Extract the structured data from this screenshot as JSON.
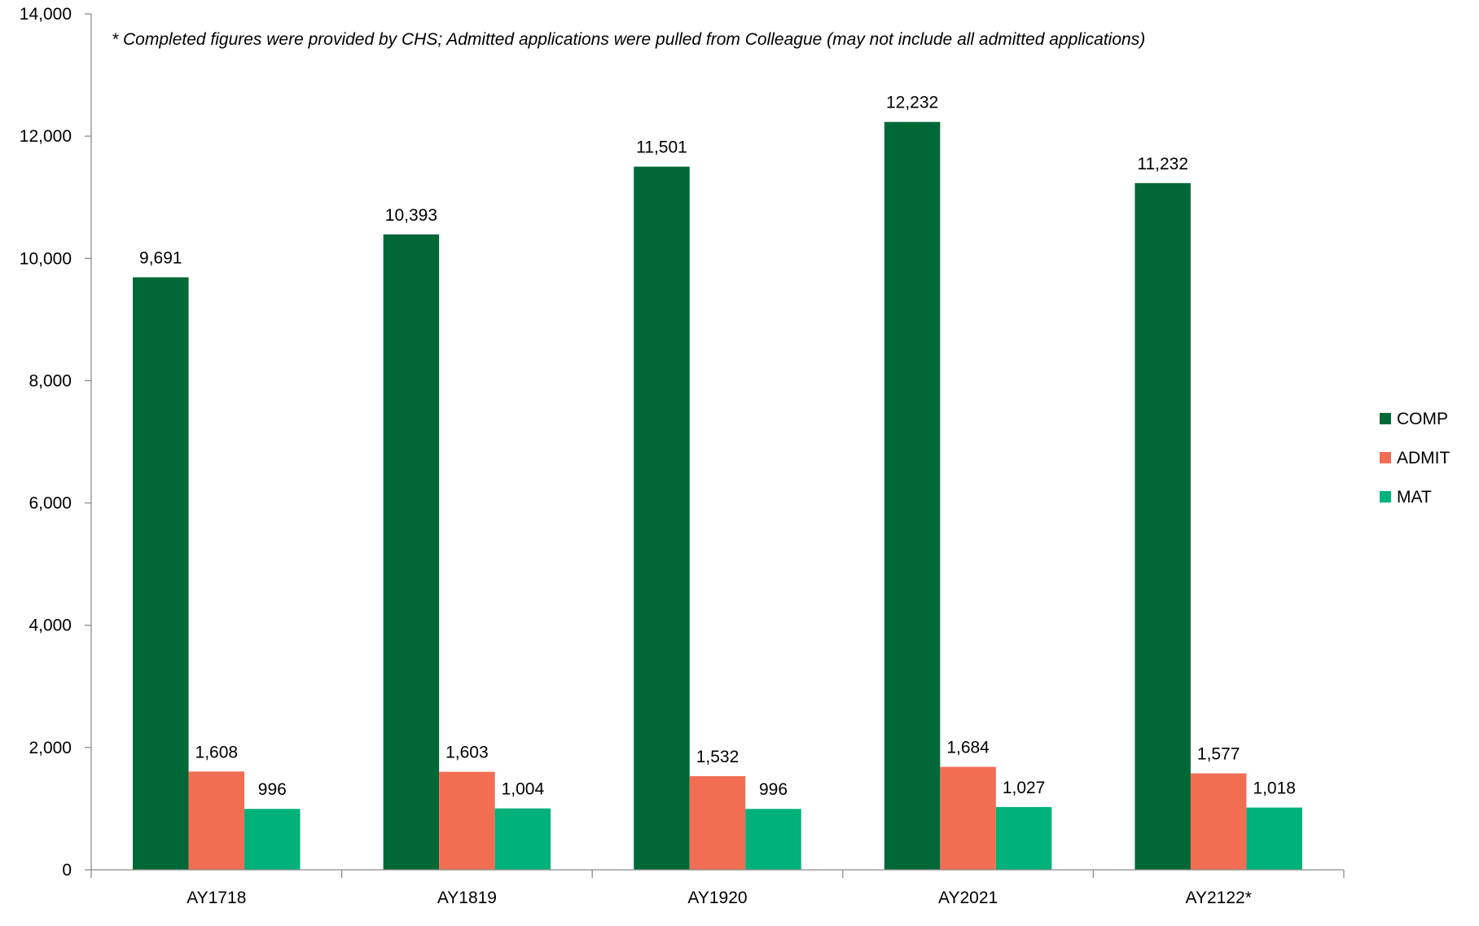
{
  "chart_data": {
    "type": "bar",
    "title": "",
    "annotation": "* Completed figures were provided by CHS; Admitted applications were pulled from Colleague (may not include all admitted applications)",
    "xlabel": "",
    "ylabel": "",
    "categories": [
      "AY1718",
      "AY1819",
      "AY1920",
      "AY2021",
      "AY2122*"
    ],
    "series": [
      {
        "name": "COMP",
        "color": "#006837",
        "values": [
          9691,
          10393,
          11501,
          12232,
          11232
        ],
        "labels": [
          "9,691",
          "10,393",
          "11,501",
          "12,232",
          "11,232"
        ]
      },
      {
        "name": "ADMIT",
        "color": "#F26E53",
        "values": [
          1608,
          1603,
          1532,
          1684,
          1577
        ],
        "labels": [
          "1,608",
          "1,603",
          "1,532",
          "1,684",
          "1,577"
        ]
      },
      {
        "name": "MAT",
        "color": "#00B27A",
        "values": [
          996,
          1004,
          996,
          1027,
          1018
        ],
        "labels": [
          "996",
          "1,004",
          "996",
          "1,027",
          "1,018"
        ]
      }
    ],
    "ylim": [
      0,
      14000
    ],
    "yticks": [
      0,
      2000,
      4000,
      6000,
      8000,
      10000,
      12000,
      14000
    ],
    "ytick_labels": [
      "0",
      "2,000",
      "4,000",
      "6,000",
      "8,000",
      "10,000",
      "12,000",
      "14,000"
    ],
    "grid": false,
    "legend_position": "right"
  }
}
